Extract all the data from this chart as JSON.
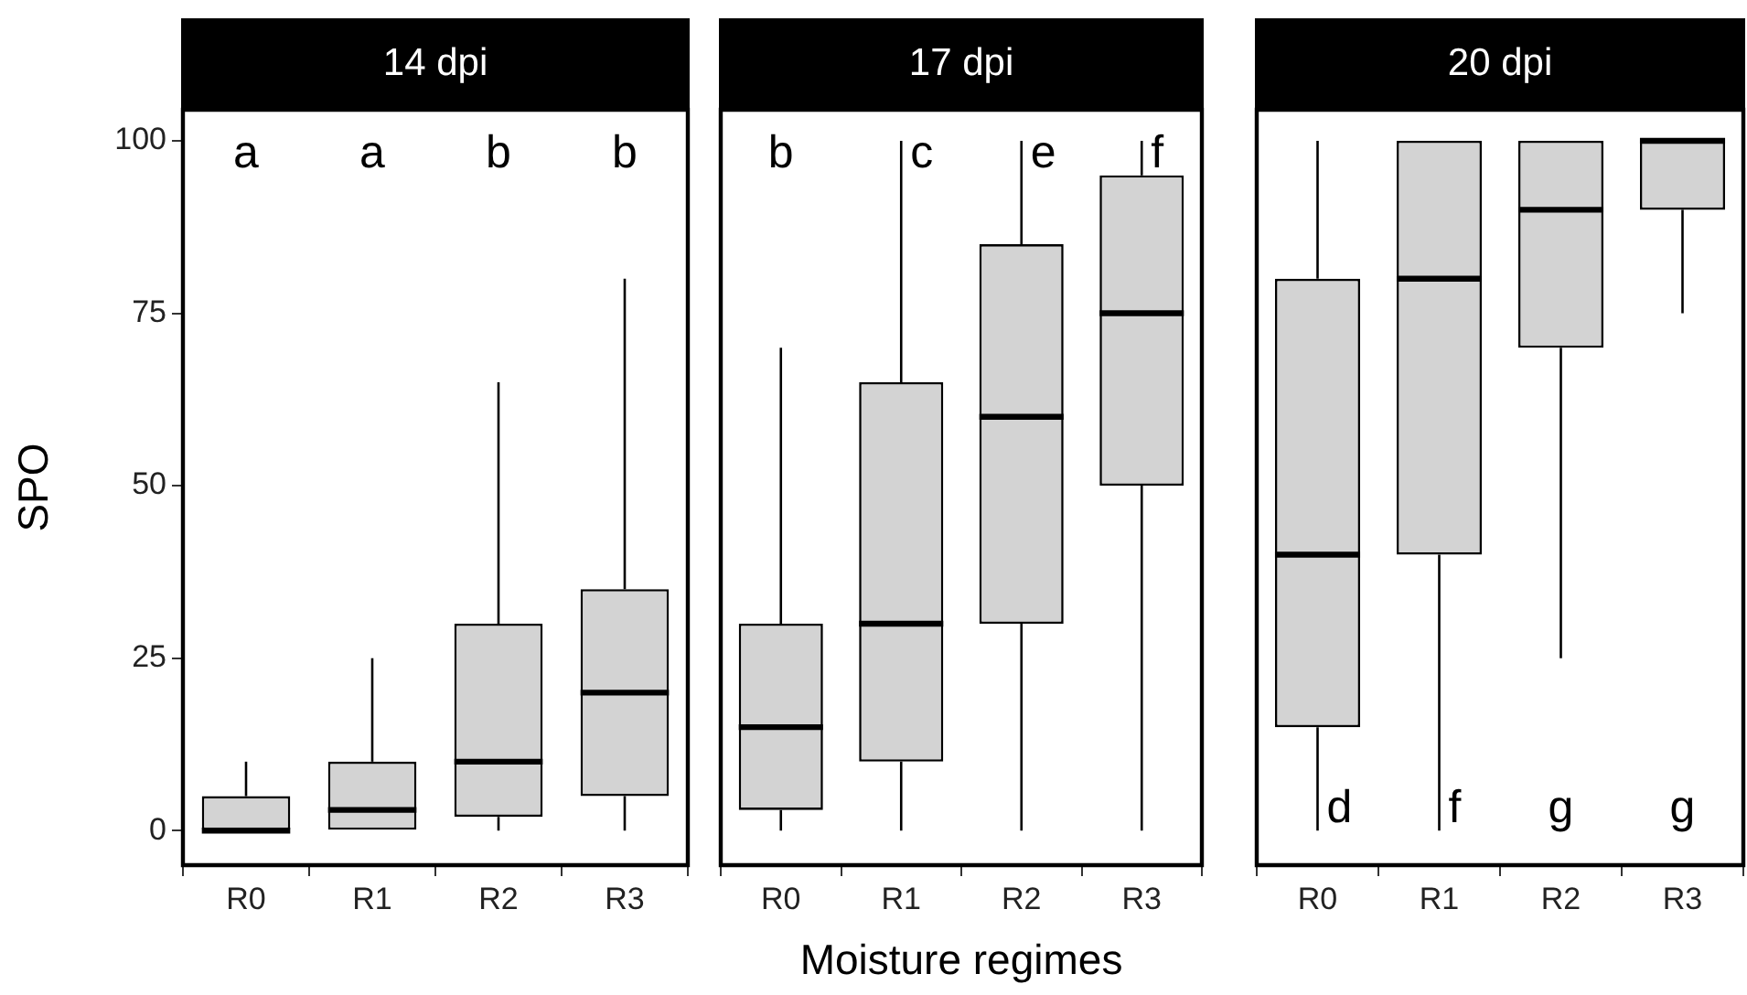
{
  "chart_data": [
    {
      "type": "box",
      "title": "14 dpi",
      "ylabel": "SPO",
      "categories": [
        "R0",
        "R1",
        "R2",
        "R3"
      ],
      "ylim": [
        -5,
        104.5
      ],
      "yticks": [
        0,
        25,
        50,
        75,
        100
      ],
      "boxes": [
        {
          "low": 0,
          "q1": 0,
          "median": 0,
          "q3": 5,
          "high": 10
        },
        {
          "low": 0,
          "q1": 0,
          "median": 3,
          "q3": 10,
          "high": 25
        },
        {
          "low": 0,
          "q1": 2,
          "median": 10,
          "q3": 30,
          "high": 65
        },
        {
          "low": 0,
          "q1": 5,
          "median": 20,
          "q3": 35,
          "high": 80
        }
      ],
      "annotations": [
        "a",
        "a",
        "b",
        "b"
      ]
    },
    {
      "type": "box",
      "title": "17 dpi",
      "xlabel": "Moisture regimes",
      "categories": [
        "R0",
        "R1",
        "R2",
        "R3"
      ],
      "ylim": [
        -5,
        104.5
      ],
      "yticks": [
        0,
        25,
        50,
        75,
        100
      ],
      "tick_labels": "x",
      "boxes": [
        {
          "low": 0,
          "q1": 3,
          "median": 15,
          "q3": 30,
          "high": 70
        },
        {
          "low": 0,
          "q1": 10,
          "median": 30,
          "q3": 65,
          "high": 100
        },
        {
          "low": 0,
          "q1": 30,
          "median": 60,
          "q3": 85,
          "high": 100
        },
        {
          "low": 0,
          "q1": 50,
          "median": 75,
          "q3": 95,
          "high": 100
        }
      ],
      "annotations": [
        "b",
        "c",
        "e",
        "f"
      ]
    },
    {
      "type": "box",
      "title": "20 dpi",
      "categories": [
        "R0",
        "R1",
        "R2",
        "R3"
      ],
      "ylim": [
        -5,
        104.5
      ],
      "yticks": [
        0,
        25,
        50,
        75,
        100
      ],
      "tick_labels": "x",
      "boxes": [
        {
          "low": 0,
          "q1": 15,
          "median": 40,
          "q3": 80,
          "high": 100
        },
        {
          "low": 0,
          "q1": 40,
          "median": 80,
          "q3": 100,
          "high": 100
        },
        {
          "low": 25,
          "q1": 70,
          "median": 90,
          "q3": 100,
          "high": 100
        },
        {
          "low": 75,
          "q1": 90,
          "median": 100,
          "q3": 100,
          "high": 100
        }
      ],
      "annotations": [
        "d",
        "f",
        "g",
        "g"
      ]
    }
  ]
}
